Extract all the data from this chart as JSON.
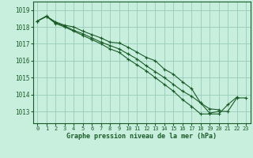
{
  "title": "Graphe pression niveau de la mer (hPa)",
  "bg_color": "#c8eedd",
  "grid_color": "#99ccbb",
  "line_color": "#1a5c28",
  "xlim": [
    -0.5,
    23.5
  ],
  "ylim": [
    1012.3,
    1019.5
  ],
  "yticks": [
    1013,
    1014,
    1015,
    1016,
    1017,
    1018,
    1019
  ],
  "xticks": [
    0,
    1,
    2,
    3,
    4,
    5,
    6,
    7,
    8,
    9,
    10,
    11,
    12,
    13,
    14,
    15,
    16,
    17,
    18,
    19,
    20,
    21,
    22,
    23
  ],
  "series": [
    [
      1018.35,
      1018.62,
      1018.3,
      1018.1,
      1018.0,
      1017.75,
      1017.55,
      1017.35,
      1017.1,
      1017.05,
      1016.8,
      1016.5,
      1016.2,
      1016.0,
      1015.5,
      1015.2,
      1014.75,
      1014.35,
      1013.5,
      1012.9,
      1013.0,
      1013.0,
      1013.8,
      1013.8
    ],
    [
      1018.35,
      1018.62,
      1018.2,
      1018.0,
      1017.75,
      1017.5,
      1017.25,
      1017.0,
      1016.7,
      1016.5,
      1016.1,
      1015.75,
      1015.4,
      1015.0,
      1014.6,
      1014.2,
      1013.7,
      1013.3,
      1012.85,
      1012.85,
      1012.85,
      1013.4,
      1013.85,
      null
    ],
    [
      1018.35,
      1018.65,
      1018.25,
      1018.05,
      1017.8,
      1017.6,
      1017.35,
      1017.1,
      1016.9,
      1016.7,
      1016.4,
      1016.1,
      1015.7,
      1015.35,
      1015.0,
      1014.6,
      1014.2,
      1013.9,
      1013.5,
      1013.15,
      1013.1,
      null,
      null,
      null
    ]
  ]
}
